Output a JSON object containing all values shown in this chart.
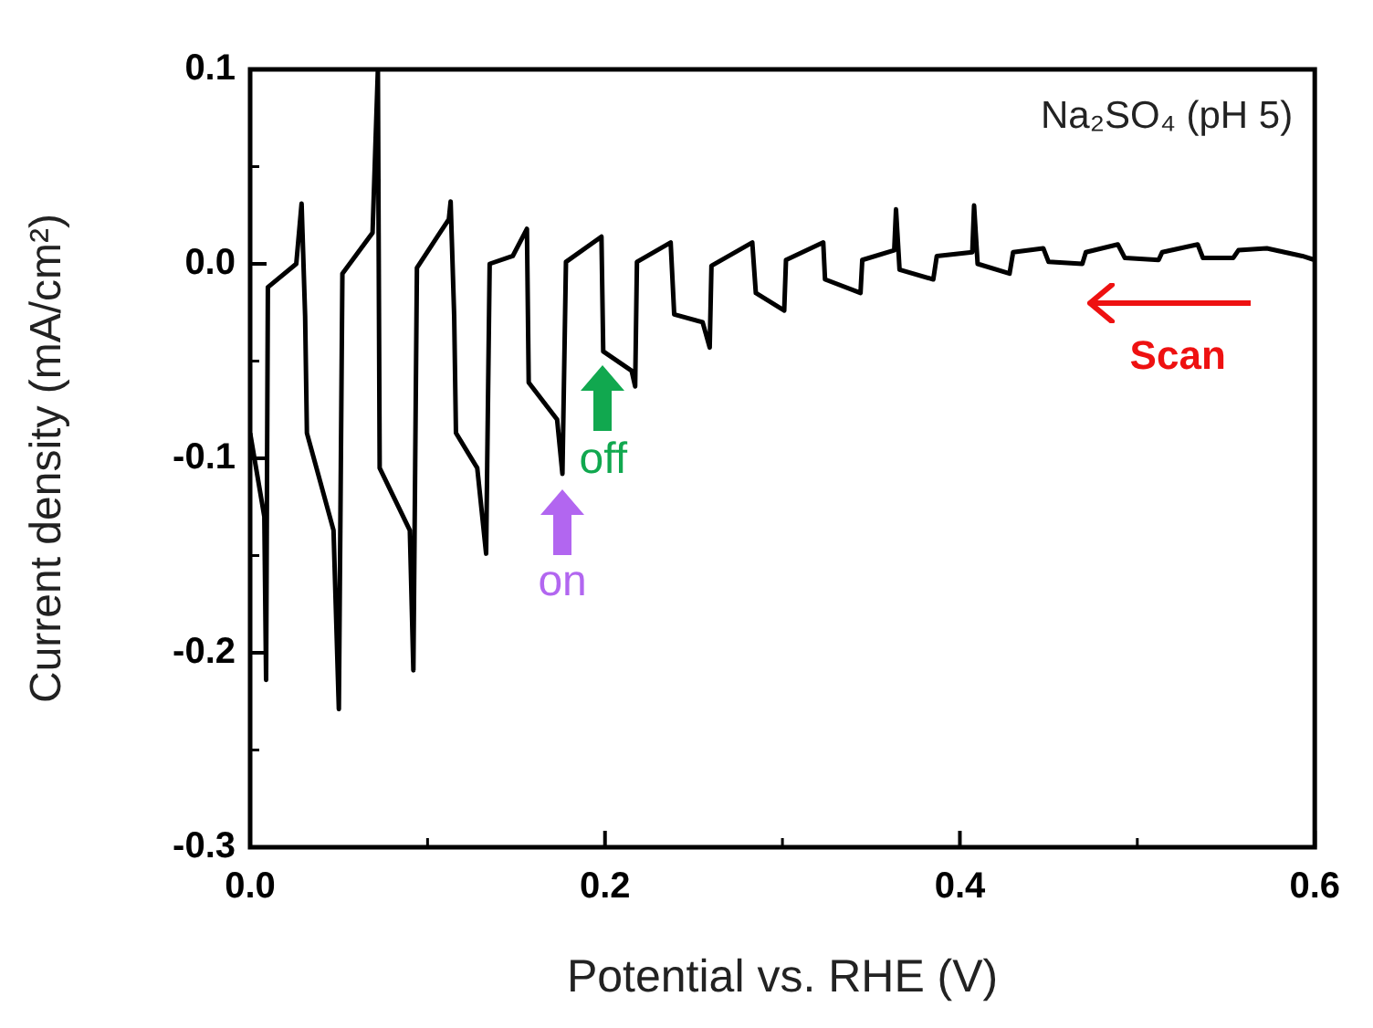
{
  "chart_data": {
    "type": "line",
    "xlabel": "Potential vs. RHE (V)",
    "ylabel": "Current density (mA/cm²)",
    "xlim": [
      0,
      0.6
    ],
    "xticks": [
      {
        "value": 0,
        "label": "0.0"
      },
      0.2,
      0.4,
      0.6
    ],
    "ylim": [
      -0.3,
      0.1
    ],
    "yticks": [
      -0.3,
      -0.2,
      -0.1,
      {
        "value": 0,
        "label": "0.0"
      },
      0.1
    ],
    "grid": false,
    "legend": false,
    "marker": "none",
    "line_style": "solid",
    "series": [
      {
        "color": "#000000",
        "x": [
          0.0,
          0.008,
          0.009,
          0.01,
          0.026,
          0.029,
          0.031,
          0.032,
          0.047,
          0.05,
          0.052,
          0.069,
          0.072,
          0.073,
          0.09,
          0.092,
          0.094,
          0.112,
          0.113,
          0.115,
          0.116,
          0.128,
          0.133,
          0.135,
          0.148,
          0.156,
          0.157,
          0.173,
          0.176,
          0.178,
          0.198,
          0.199,
          0.215,
          0.217,
          0.218,
          0.237,
          0.239,
          0.255,
          0.259,
          0.26,
          0.283,
          0.285,
          0.301,
          0.302,
          0.323,
          0.324,
          0.344,
          0.345,
          0.363,
          0.364,
          0.366,
          0.385,
          0.387,
          0.407,
          0.408,
          0.41,
          0.428,
          0.43,
          0.447,
          0.45,
          0.469,
          0.471,
          0.489,
          0.493,
          0.512,
          0.514,
          0.534,
          0.537,
          0.554,
          0.557,
          0.573,
          0.593,
          0.6
        ],
        "values": [
          -0.087,
          -0.13,
          -0.214,
          -0.012,
          0.0,
          0.031,
          -0.027,
          -0.087,
          -0.137,
          -0.229,
          -0.005,
          0.016,
          0.1,
          -0.105,
          -0.137,
          -0.209,
          -0.002,
          0.023,
          0.032,
          -0.027,
          -0.087,
          -0.105,
          -0.149,
          0.0,
          0.004,
          0.018,
          -0.061,
          -0.08,
          -0.108,
          0.001,
          0.014,
          -0.045,
          -0.055,
          -0.063,
          0.001,
          0.011,
          -0.026,
          -0.03,
          -0.043,
          -0.001,
          0.011,
          -0.015,
          -0.024,
          0.002,
          0.011,
          -0.008,
          -0.015,
          0.002,
          0.007,
          0.028,
          -0.003,
          -0.008,
          0.004,
          0.006,
          0.03,
          0.0,
          -0.005,
          0.006,
          0.008,
          0.001,
          0.0,
          0.006,
          0.01,
          0.003,
          0.002,
          0.006,
          0.01,
          0.003,
          0.003,
          0.007,
          0.008,
          0.004,
          0.002
        ]
      }
    ],
    "annotations": [
      "Na₂SO₄ (pH 5)",
      {
        "text": "on",
        "x": 0.176,
        "y": -0.108
      },
      {
        "text": "off",
        "x": 0.199,
        "y": -0.045
      },
      "Scan"
    ]
  }
}
